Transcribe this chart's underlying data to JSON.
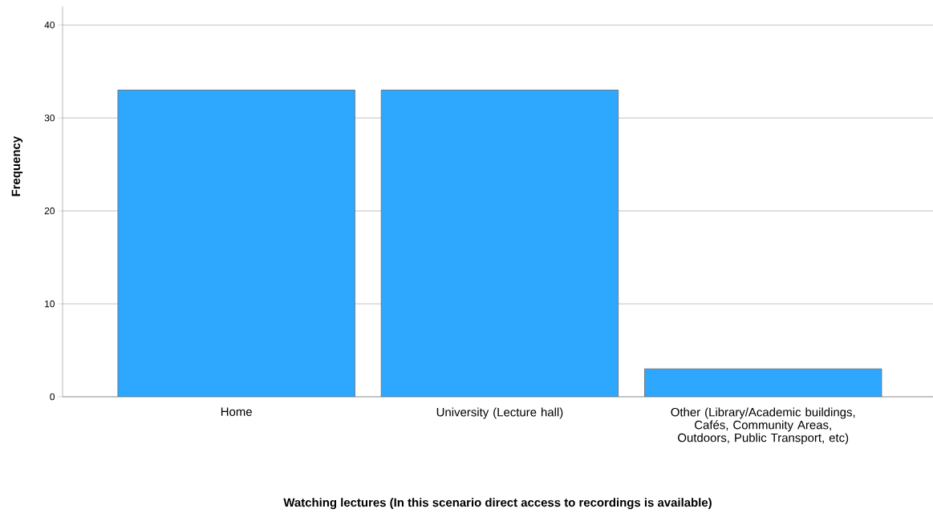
{
  "chart_data": {
    "type": "bar",
    "xlabel": "Watching lectures (In this scenario direct access to recordings is available)",
    "ylabel": "Frequency",
    "categories": [
      "Home",
      "University (Lecture hall)",
      "Other (Library/Academic buildings, Cafés, Community Areas, Outdoors, Public Transport, etc)"
    ],
    "values": [
      33,
      33,
      3
    ],
    "color": "#2ea8ff",
    "ylim": [
      0,
      42
    ],
    "yticks": [
      0,
      10,
      20,
      30,
      40
    ],
    "grid": "y"
  }
}
